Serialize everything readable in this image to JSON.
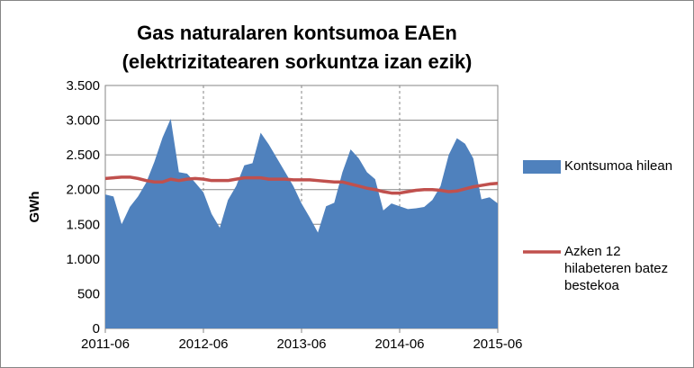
{
  "chart_data": {
    "type": "area-line",
    "title": "Gas naturalaren kontsumoa EAEn",
    "subtitle": "(elektrizitatearen sorkuntza izan ezik)",
    "y_label": "GWh",
    "categories": [
      "2011-06",
      null,
      null,
      null,
      null,
      null,
      null,
      null,
      null,
      null,
      null,
      null,
      "2012-06",
      null,
      null,
      null,
      null,
      null,
      null,
      null,
      null,
      null,
      null,
      null,
      "2013-06",
      null,
      null,
      null,
      null,
      null,
      null,
      null,
      null,
      null,
      null,
      null,
      "2014-06",
      null,
      null,
      null,
      null,
      null,
      null,
      null,
      null,
      null,
      null,
      null,
      "2015-06"
    ],
    "series": [
      {
        "name": "Kontsumoa hilean",
        "color": "#4f81bd",
        "kind": "area",
        "values": [
          1930,
          1900,
          1500,
          1750,
          1900,
          2100,
          2400,
          2750,
          3020,
          2250,
          2230,
          2100,
          1960,
          1650,
          1450,
          1850,
          2050,
          2350,
          2380,
          2820,
          2650,
          2450,
          2250,
          2050,
          1800,
          1600,
          1380,
          1760,
          1810,
          2250,
          2580,
          2450,
          2250,
          2150,
          1700,
          1800,
          1760,
          1720,
          1730,
          1750,
          1850,
          2050,
          2500,
          2740,
          2660,
          2450,
          1860,
          1890,
          1800
        ]
      },
      {
        "name": "Azken 12 hilabeteren batez bestekoa",
        "color": "#c0504d",
        "kind": "line",
        "values": [
          2160,
          2170,
          2180,
          2180,
          2160,
          2130,
          2110,
          2110,
          2150,
          2130,
          2150,
          2160,
          2150,
          2130,
          2130,
          2130,
          2150,
          2170,
          2170,
          2170,
          2150,
          2150,
          2150,
          2140,
          2140,
          2140,
          2130,
          2120,
          2110,
          2110,
          2080,
          2050,
          2020,
          2000,
          1970,
          1950,
          1950,
          1970,
          1990,
          2000,
          2000,
          1990,
          1970,
          1980,
          2010,
          2040,
          2060,
          2080,
          2090
        ]
      }
    ],
    "ylim": [
      0,
      3500
    ],
    "yticks": [
      0,
      500,
      {
        "value": 1000,
        "label": "1.000"
      },
      {
        "value": 1500,
        "label": "1.500"
      },
      {
        "value": 2000,
        "label": "2.000"
      },
      {
        "value": 2500,
        "label": "2.500"
      },
      {
        "value": 3000,
        "label": "3.000"
      },
      {
        "value": 3500,
        "label": "3.500"
      }
    ],
    "grid": true,
    "legend": "right"
  }
}
